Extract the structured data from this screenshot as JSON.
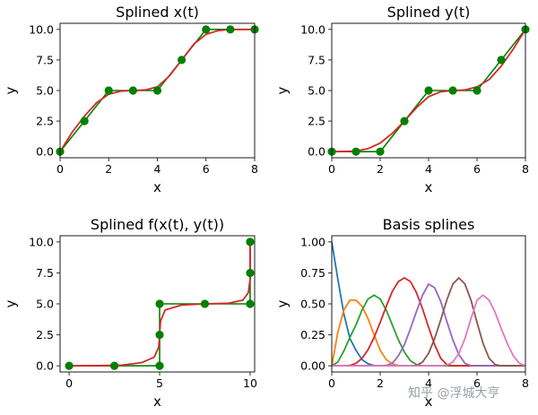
{
  "chart_data": [
    {
      "type": "line",
      "title": "Splined x(t)",
      "xlabel": "x",
      "ylabel": "y",
      "xlim": [
        0,
        8
      ],
      "ylim": [
        -0.5,
        10.5
      ],
      "xticks": [
        0,
        2,
        4,
        6,
        8
      ],
      "yticks": [
        0.0,
        2.5,
        5.0,
        7.5,
        10.0
      ],
      "series": [
        {
          "kind": "data",
          "color": "#008000",
          "x": [
            0,
            1,
            2,
            3,
            4,
            5,
            6,
            7,
            8
          ],
          "y": [
            0,
            2.5,
            5,
            5,
            5,
            7.5,
            10,
            10,
            10
          ]
        },
        {
          "kind": "spline",
          "color": "#d62728",
          "x": [
            0,
            0.5,
            1,
            1.5,
            2,
            2.5,
            3,
            3.5,
            4,
            4.5,
            5,
            5.5,
            6,
            6.5,
            7,
            7.5,
            8
          ],
          "y": [
            0,
            1.6,
            2.9,
            4.0,
            4.7,
            4.95,
            5.0,
            5.05,
            5.3,
            6.2,
            7.5,
            8.8,
            9.6,
            9.9,
            10.0,
            10.0,
            10.0
          ]
        }
      ]
    },
    {
      "type": "line",
      "title": "Splined y(t)",
      "xlabel": "x",
      "ylabel": "y",
      "xlim": [
        0,
        8
      ],
      "ylim": [
        -0.5,
        10.5
      ],
      "xticks": [
        0,
        2,
        4,
        6,
        8
      ],
      "yticks": [
        0.0,
        2.5,
        5.0,
        7.5,
        10.0
      ],
      "series": [
        {
          "kind": "data",
          "color": "#008000",
          "x": [
            0,
            1,
            2,
            3,
            4,
            5,
            6,
            7,
            8
          ],
          "y": [
            0,
            0,
            0,
            2.5,
            5,
            5,
            5,
            7.5,
            10
          ]
        },
        {
          "kind": "spline",
          "color": "#d62728",
          "x": [
            0,
            0.5,
            1,
            1.5,
            2,
            2.5,
            3,
            3.5,
            4,
            4.5,
            5,
            5.5,
            6,
            6.5,
            7,
            7.5,
            8
          ],
          "y": [
            0,
            0.01,
            0.05,
            0.25,
            0.7,
            1.5,
            2.5,
            3.6,
            4.5,
            4.9,
            5.0,
            5.05,
            5.3,
            5.9,
            7.0,
            8.4,
            10.0
          ]
        }
      ]
    },
    {
      "type": "line",
      "title": "Splined f(x(t), y(t))",
      "xlabel": "x",
      "ylabel": "y",
      "xlim": [
        -0.5,
        10.25
      ],
      "ylim": [
        -0.5,
        10.5
      ],
      "xticks": [
        0,
        5,
        10
      ],
      "yticks": [
        0.0,
        2.5,
        5.0,
        7.5,
        10.0
      ],
      "series": [
        {
          "kind": "data",
          "color": "#008000",
          "x": [
            0,
            2.5,
            5,
            5,
            5,
            7.5,
            10,
            10,
            10
          ],
          "y": [
            0,
            0,
            0,
            2.5,
            5,
            5,
            5,
            7.5,
            10
          ]
        },
        {
          "kind": "spline",
          "color": "#d62728",
          "x": [
            0,
            1.6,
            2.9,
            4.0,
            4.7,
            4.95,
            5.0,
            5.05,
            5.3,
            6.2,
            7.5,
            8.8,
            9.6,
            9.9,
            10.0,
            10.0,
            10.0
          ],
          "y": [
            0,
            0.01,
            0.05,
            0.25,
            0.7,
            1.5,
            2.5,
            3.6,
            4.5,
            4.9,
            5.0,
            5.05,
            5.3,
            5.9,
            7.0,
            8.4,
            10.0
          ]
        }
      ]
    },
    {
      "type": "line",
      "title": "Basis splines",
      "xlabel": "x",
      "ylabel": "y",
      "xlim": [
        0,
        8
      ],
      "ylim": [
        -0.05,
        1.05
      ],
      "xticks": [
        0,
        2,
        4,
        6,
        8
      ],
      "yticks": [
        0.0,
        0.25,
        0.5,
        0.75,
        1.0
      ],
      "x": [
        0,
        0.25,
        0.5,
        0.75,
        1,
        1.25,
        1.5,
        1.75,
        2,
        2.25,
        2.5,
        2.75,
        3,
        3.25,
        3.5,
        3.75,
        4,
        4.25,
        4.5,
        4.75,
        5,
        5.25,
        5.5,
        5.75,
        6,
        6.25,
        6.5,
        6.75,
        7,
        7.25,
        7.5,
        7.75,
        8
      ],
      "series": [
        {
          "color": "#1f77b4",
          "values": [
            1.0,
            0.7,
            0.42,
            0.22,
            0.125,
            0.05,
            0.016,
            0.002,
            0,
            0,
            0,
            0,
            0,
            0,
            0,
            0,
            0,
            0,
            0,
            0,
            0,
            0,
            0,
            0,
            0,
            0,
            0,
            0,
            0,
            0,
            0,
            0,
            0
          ]
        },
        {
          "color": "#ff7f0e",
          "values": [
            0,
            0.27,
            0.45,
            0.53,
            0.53,
            0.48,
            0.38,
            0.25,
            0.125,
            0.05,
            0.016,
            0.002,
            0,
            0,
            0,
            0,
            0,
            0,
            0,
            0,
            0,
            0,
            0,
            0,
            0,
            0,
            0,
            0,
            0,
            0,
            0,
            0,
            0
          ]
        },
        {
          "color": "#2ca02c",
          "values": [
            0,
            0.03,
            0.12,
            0.23,
            0.33,
            0.45,
            0.54,
            0.57,
            0.54,
            0.45,
            0.33,
            0.21,
            0.11,
            0.04,
            0.01,
            0,
            0,
            0,
            0,
            0,
            0,
            0,
            0,
            0,
            0,
            0,
            0,
            0,
            0,
            0,
            0,
            0,
            0
          ]
        },
        {
          "color": "#d62728",
          "values": [
            0,
            0,
            0,
            0.003,
            0.02,
            0.06,
            0.13,
            0.23,
            0.35,
            0.48,
            0.6,
            0.68,
            0.71,
            0.68,
            0.59,
            0.46,
            0.31,
            0.17,
            0.06,
            0.01,
            0,
            0,
            0,
            0,
            0,
            0,
            0,
            0,
            0,
            0,
            0,
            0,
            0
          ]
        },
        {
          "color": "#9467bd",
          "values": [
            0,
            0,
            0,
            0,
            0,
            0,
            0,
            0,
            0,
            0.003,
            0.02,
            0.08,
            0.17,
            0.3,
            0.44,
            0.57,
            0.66,
            0.63,
            0.52,
            0.36,
            0.21,
            0.09,
            0.02,
            0,
            0,
            0,
            0,
            0,
            0,
            0,
            0,
            0,
            0
          ]
        },
        {
          "color": "#8c564b",
          "values": [
            0,
            0,
            0,
            0,
            0,
            0,
            0,
            0,
            0,
            0,
            0,
            0,
            0,
            0,
            0.003,
            0.03,
            0.1,
            0.22,
            0.37,
            0.53,
            0.66,
            0.71,
            0.66,
            0.53,
            0.35,
            0.18,
            0.06,
            0.01,
            0,
            0,
            0,
            0,
            0
          ]
        },
        {
          "color": "#e377c2",
          "values": [
            0,
            0,
            0,
            0,
            0,
            0,
            0,
            0,
            0,
            0,
            0,
            0,
            0,
            0,
            0,
            0,
            0,
            0,
            0,
            0.005,
            0.03,
            0.1,
            0.22,
            0.38,
            0.53,
            0.57,
            0.53,
            0.43,
            0.3,
            0.18,
            0.08,
            0.02,
            0
          ]
        }
      ]
    }
  ],
  "watermark": "知乎 @浮城大亨"
}
